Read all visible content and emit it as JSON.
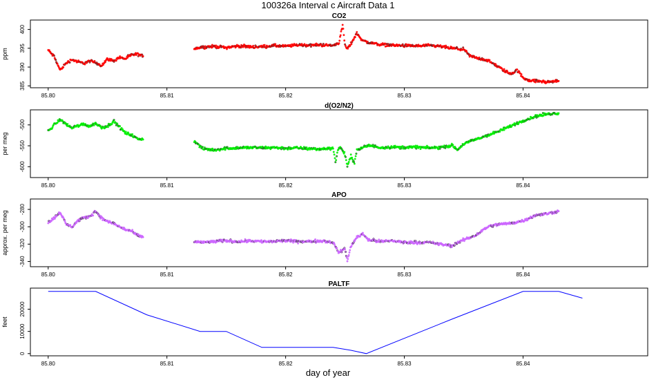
{
  "figure": {
    "title": "100326a   Interval c Aircraft Data 1",
    "xlabel": "day of year"
  },
  "chart_data": [
    {
      "type": "scatter",
      "title": "CO2",
      "ylabel": "ppm",
      "xlim": [
        85.7985,
        85.8505
      ],
      "ylim": [
        384.5,
        402.5
      ],
      "yticks": [
        385,
        390,
        395,
        400
      ],
      "xticks": [
        "85.80",
        "85.81",
        "85.82",
        "85.83",
        "85.84"
      ],
      "color": "#ff0000",
      "series": [
        {
          "x": [
            85.8,
            85.8005,
            85.801,
            85.8015,
            85.802,
            85.8025,
            85.803,
            85.8035,
            85.804,
            85.8045,
            85.805,
            85.8055,
            85.806,
            85.8065,
            85.807,
            85.8075,
            85.808
          ],
          "y": [
            394.5,
            392.8,
            389.2,
            391.0,
            392.0,
            391.4,
            391.0,
            391.6,
            391.2,
            390.4,
            392.2,
            391.6,
            392.6,
            392.2,
            393.2,
            393.4,
            392.9
          ]
        },
        {
          "x": [
            85.8123,
            85.813,
            85.814,
            85.815,
            85.816,
            85.817,
            85.818,
            85.819,
            85.82,
            85.821,
            85.822,
            85.823,
            85.824,
            85.8245,
            85.8248,
            85.825,
            85.8252,
            85.8255,
            85.826,
            85.8265,
            85.827,
            85.828,
            85.829,
            85.83,
            85.831,
            85.832,
            85.833,
            85.834,
            85.835,
            85.8355,
            85.836,
            85.837,
            85.838,
            85.8385,
            85.839,
            85.8395,
            85.84,
            85.8405,
            85.841,
            85.8415,
            85.842,
            85.8425,
            85.843
          ],
          "y": [
            395.0,
            395.3,
            395.5,
            395.2,
            395.6,
            395.4,
            395.4,
            395.7,
            395.5,
            395.9,
            395.8,
            395.9,
            395.7,
            396.5,
            401.2,
            395.8,
            394.8,
            396.2,
            399.0,
            397.0,
            396.5,
            396.0,
            395.8,
            395.7,
            395.6,
            395.7,
            395.5,
            395.0,
            394.7,
            393.0,
            392.5,
            391.8,
            389.9,
            388.9,
            388.2,
            389.2,
            387.2,
            386.5,
            386.3,
            386.2,
            386.0,
            386.2,
            386.3
          ]
        }
      ]
    },
    {
      "type": "scatter",
      "title": "d(O2/N2)",
      "ylabel": "per meg",
      "xlim": [
        85.7985,
        85.8505
      ],
      "ylim": [
        -626,
        -464
      ],
      "yticks": [
        -500,
        -550,
        -600
      ],
      "xticks": [
        "85.80",
        "85.81",
        "85.82",
        "85.83",
        "85.84"
      ],
      "color": "#00ee00",
      "series": [
        {
          "x": [
            85.8,
            85.8005,
            85.801,
            85.8015,
            85.802,
            85.8025,
            85.803,
            85.8035,
            85.804,
            85.8045,
            85.805,
            85.8055,
            85.806,
            85.8065,
            85.807,
            85.8075,
            85.808
          ],
          "y": [
            -515,
            -500,
            -487,
            -498,
            -507,
            -502,
            -498,
            -503,
            -496,
            -506,
            -503,
            -491,
            -505,
            -519,
            -524,
            -533,
            -535
          ]
        },
        {
          "x": [
            85.8123,
            85.813,
            85.814,
            85.815,
            85.816,
            85.817,
            85.818,
            85.819,
            85.82,
            85.821,
            85.822,
            85.823,
            85.824,
            85.8242,
            85.8244,
            85.8246,
            85.825,
            85.8252,
            85.8255,
            85.8258,
            85.826,
            85.827,
            85.828,
            85.829,
            85.83,
            85.831,
            85.832,
            85.833,
            85.834,
            85.8345,
            85.835,
            85.836,
            85.837,
            85.838,
            85.839,
            85.84,
            85.841,
            85.842,
            85.843
          ],
          "y": [
            -538,
            -557,
            -560,
            -556,
            -555,
            -554,
            -555,
            -554,
            -556,
            -555,
            -557,
            -558,
            -555,
            -590,
            -558,
            -554,
            -570,
            -600,
            -575,
            -590,
            -560,
            -549,
            -554,
            -553,
            -554,
            -553,
            -555,
            -554,
            -549,
            -560,
            -545,
            -535,
            -525,
            -515,
            -502,
            -490,
            -480,
            -474,
            -472
          ]
        }
      ]
    },
    {
      "type": "scatter",
      "title": "APO",
      "ylabel": "approx. per meg",
      "xlim": [
        85.7985,
        85.8505
      ],
      "ylim": [
        -346,
        -268
      ],
      "yticks": [
        -280,
        -300,
        -320,
        -340
      ],
      "xticks": [
        "85.80",
        "85.81",
        "85.82",
        "85.83",
        "85.84"
      ],
      "color": "#cc66ff",
      "series": [
        {
          "x": [
            85.8,
            85.8005,
            85.801,
            85.8015,
            85.802,
            85.8025,
            85.803,
            85.8035,
            85.804,
            85.8045,
            85.805,
            85.8055,
            85.806,
            85.8065,
            85.807,
            85.8075,
            85.808
          ],
          "y": [
            -295,
            -290,
            -283,
            -297,
            -300,
            -293,
            -290,
            -288,
            -282,
            -290,
            -294,
            -296,
            -300,
            -303,
            -305,
            -310,
            -312
          ]
        },
        {
          "x": [
            85.8123,
            85.813,
            85.814,
            85.815,
            85.816,
            85.817,
            85.818,
            85.819,
            85.82,
            85.821,
            85.822,
            85.823,
            85.824,
            85.8245,
            85.825,
            85.8252,
            85.8255,
            85.826,
            85.8265,
            85.827,
            85.828,
            85.829,
            85.83,
            85.831,
            85.832,
            85.833,
            85.834,
            85.835,
            85.836,
            85.837,
            85.838,
            85.839,
            85.84,
            85.841,
            85.842,
            85.843
          ],
          "y": [
            -317,
            -318,
            -317,
            -316,
            -317,
            -316,
            -317,
            -317,
            -316,
            -317,
            -317,
            -316,
            -318,
            -330,
            -325,
            -340,
            -322,
            -312,
            -308,
            -315,
            -317,
            -316,
            -318,
            -318,
            -318,
            -320,
            -322,
            -315,
            -310,
            -300,
            -297,
            -296,
            -293,
            -287,
            -285,
            -282
          ]
        }
      ]
    },
    {
      "type": "line",
      "title": "PALTF",
      "ylabel": "feet",
      "xlim": [
        85.7985,
        85.8505
      ],
      "ylim": [
        -1000,
        29500
      ],
      "yticks": [
        0,
        10000,
        20000
      ],
      "xticks": [
        "85.80",
        "85.81",
        "85.82",
        "85.83",
        "85.84"
      ],
      "color": "#0000ff",
      "series": [
        {
          "x": [
            85.8,
            85.804,
            85.8083,
            85.8128,
            85.815,
            85.818,
            85.824,
            85.8255,
            85.8268,
            85.834,
            85.84,
            85.843,
            85.845
          ],
          "y": [
            28000,
            28000,
            17500,
            10000,
            10000,
            2800,
            2800,
            1500,
            0,
            15500,
            28000,
            28000,
            25000
          ]
        }
      ]
    }
  ]
}
